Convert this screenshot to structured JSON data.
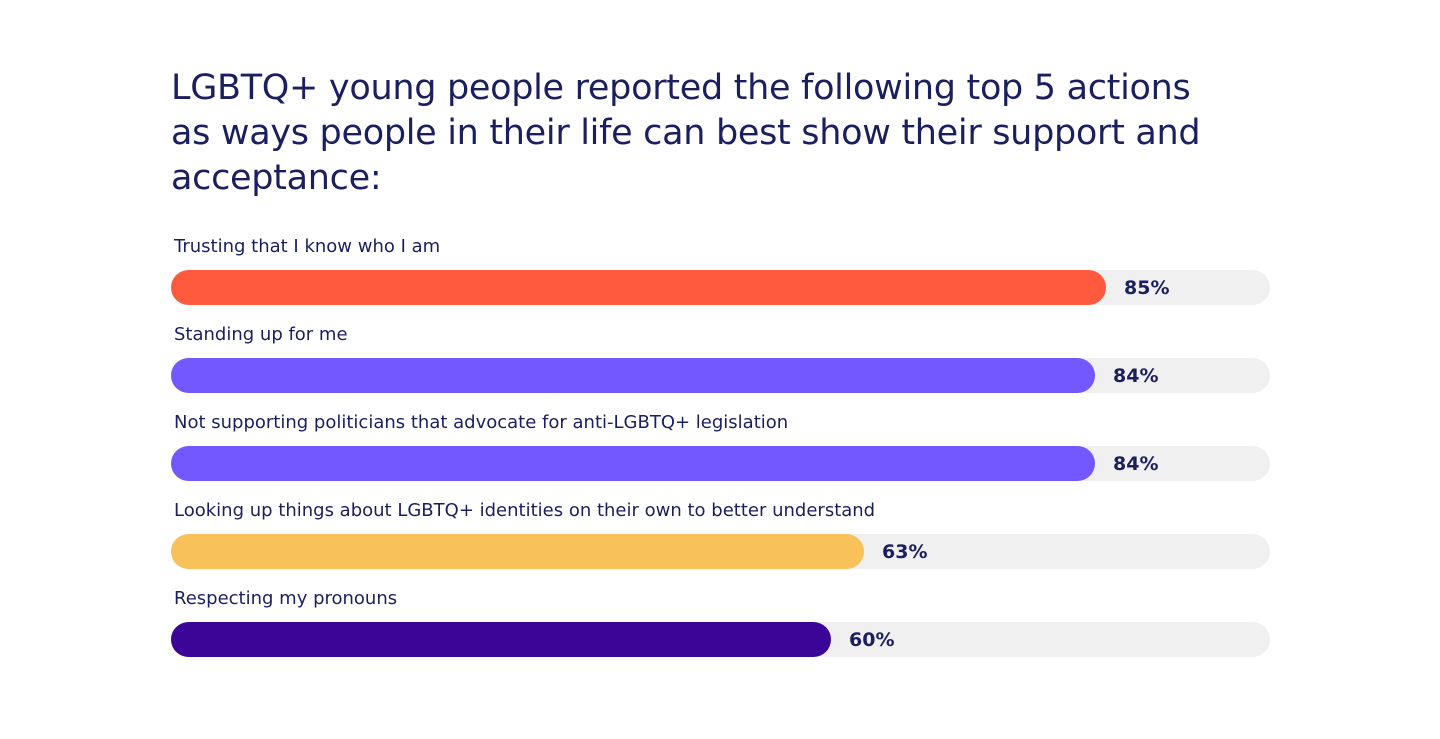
{
  "chart_data": {
    "type": "bar",
    "orientation": "horizontal",
    "title": "LGBTQ+ young people reported the following top 5 actions as ways people in their life can best show their support and acceptance:",
    "categories": [
      "Trusting that I know who I am",
      "Standing up for me",
      "Not supporting politicians that advocate for anti-LGBTQ+ legislation",
      "Looking up things about LGBTQ+ identities on their own to better understand",
      "Respecting my pronouns"
    ],
    "values": [
      85,
      84,
      84,
      63,
      60
    ],
    "value_labels": [
      "85%",
      "84%",
      "84%",
      "63%",
      "60%"
    ],
    "colors": [
      "#ff5a3e",
      "#7357ff",
      "#7357ff",
      "#f8c159",
      "#3d0597"
    ],
    "track_color": "#f0f0f0",
    "xlim": [
      0,
      100
    ],
    "grid": false,
    "legend": "none"
  }
}
